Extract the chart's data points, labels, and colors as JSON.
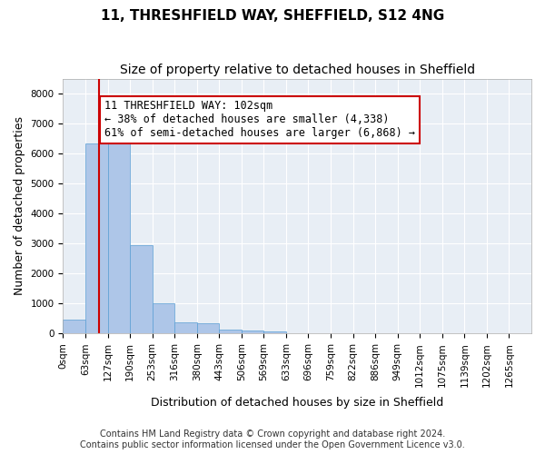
{
  "title": "11, THRESHFIELD WAY, SHEFFIELD, S12 4NG",
  "subtitle": "Size of property relative to detached houses in Sheffield",
  "xlabel": "Distribution of detached houses by size in Sheffield",
  "ylabel": "Number of detached properties",
  "footer_line1": "Contains HM Land Registry data © Crown copyright and database right 2024.",
  "footer_line2": "Contains public sector information licensed under the Open Government Licence v3.0.",
  "bin_labels": [
    "0sqm",
    "63sqm",
    "127sqm",
    "190sqm",
    "253sqm",
    "316sqm",
    "380sqm",
    "443sqm",
    "506sqm",
    "569sqm",
    "633sqm",
    "696sqm",
    "759sqm",
    "822sqm",
    "886sqm",
    "949sqm",
    "1012sqm",
    "1075sqm",
    "1139sqm",
    "1202sqm",
    "1265sqm"
  ],
  "bar_values": [
    480,
    6350,
    6350,
    2950,
    1000,
    380,
    360,
    120,
    110,
    60,
    0,
    0,
    0,
    0,
    0,
    0,
    0,
    0,
    0,
    0,
    0
  ],
  "bar_color": "#aec6e8",
  "bar_edge_color": "#5a9fd4",
  "property_line_x": 1.6,
  "property_line_color": "#cc0000",
  "annotation_text": "11 THRESHFIELD WAY: 102sqm\n← 38% of detached houses are smaller (4,338)\n61% of semi-detached houses are larger (6,868) →",
  "annotation_box_color": "#ffffff",
  "annotation_box_edge_color": "#cc0000",
  "ylim": [
    0,
    8500
  ],
  "yticks": [
    0,
    1000,
    2000,
    3000,
    4000,
    5000,
    6000,
    7000,
    8000
  ],
  "background_color": "#e8eef5",
  "title_fontsize": 11,
  "subtitle_fontsize": 10,
  "ylabel_fontsize": 9,
  "xlabel_fontsize": 9,
  "tick_fontsize": 7.5,
  "annotation_fontsize": 8.5,
  "footer_fontsize": 7
}
